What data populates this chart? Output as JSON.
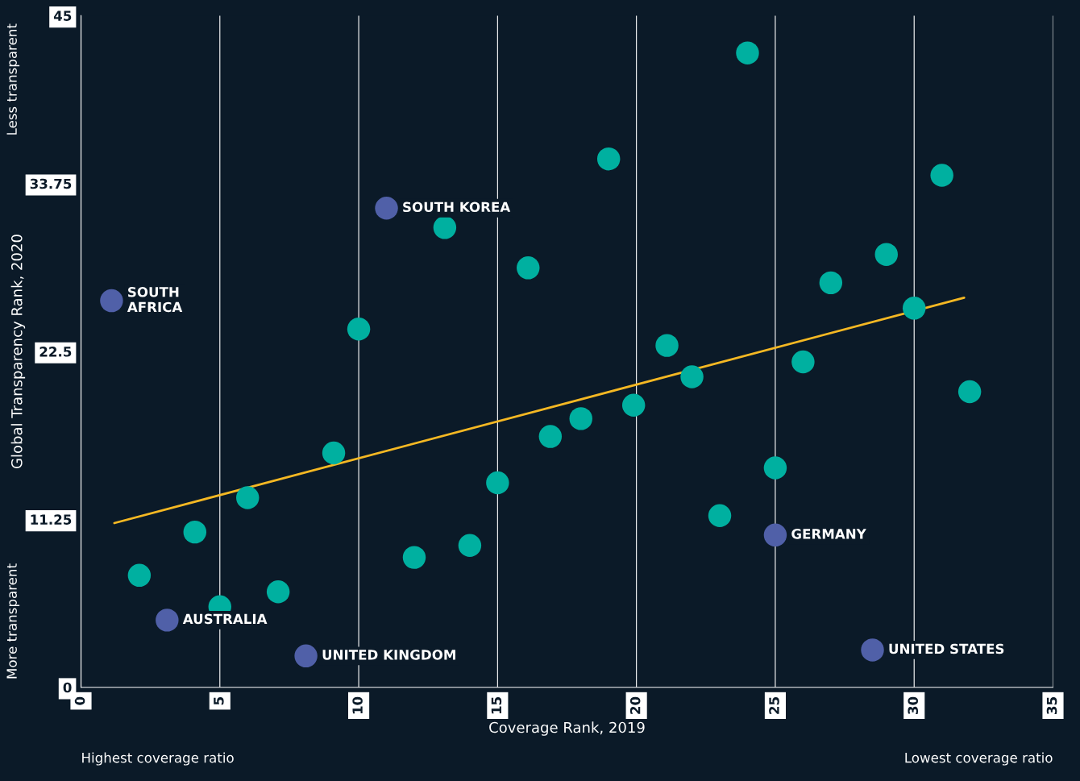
{
  "chart_data": {
    "type": "scatter",
    "xlabel": "Coverage Rank, 2019",
    "ylabel": "Global Transparency Rank, 2020",
    "xlim": [
      0,
      35
    ],
    "xticks": [
      0,
      5,
      10,
      15,
      20,
      25,
      30,
      35
    ],
    "ylim": [
      0,
      45
    ],
    "yticks": [
      0,
      11.25,
      22.5,
      33.75,
      45
    ],
    "grid": "x",
    "marker": "circle",
    "legend": false,
    "series": [
      {
        "color": "#00b0a0",
        "x": [
          2.1,
          4.1,
          5.0,
          6.0,
          7.1,
          9.1,
          10.0,
          12.0,
          13.1,
          14.0,
          15.0,
          16.1,
          16.9,
          18.0,
          19.0,
          19.9,
          21.1,
          22.0,
          23.0,
          24.0,
          25.0,
          26.0,
          27.0,
          29.0,
          30.0,
          31.0,
          32.0
        ],
        "values": [
          7.5,
          10.4,
          5.4,
          12.7,
          6.4,
          15.7,
          24.0,
          8.7,
          30.8,
          9.5,
          13.7,
          28.1,
          16.8,
          18.0,
          35.4,
          18.9,
          22.9,
          20.8,
          11.5,
          42.5,
          14.7,
          21.8,
          27.1,
          29.0,
          25.4,
          34.3,
          19.8
        ]
      },
      {
        "color": "#5060a8",
        "x": [
          1.1,
          3.1,
          8.1,
          11.0,
          25.0,
          28.5
        ],
        "values": [
          25.9,
          4.5,
          2.1,
          32.1,
          10.2,
          2.5
        ]
      },
      {
        "type": "line",
        "color": "#f5b823",
        "marker": "none",
        "line_style": "solid",
        "x": [
          1.2,
          31.8
        ],
        "values": [
          11.0,
          26.1
        ]
      }
    ],
    "annotations": [
      {
        "text": "SOUTH\nAFRICA",
        "x": 1.1,
        "y": 25.9
      },
      {
        "text": "AUSTRALIA",
        "x": 3.1,
        "y": 4.5
      },
      {
        "text": "UNITED KINGDOM",
        "x": 8.1,
        "y": 2.1
      },
      {
        "text": "SOUTH KOREA",
        "x": 11.0,
        "y": 32.1
      },
      {
        "text": "GERMANY",
        "x": 25.0,
        "y": 10.2
      },
      {
        "text": "UNITED STATES",
        "x": 28.5,
        "y": 2.5
      },
      "Less transparent",
      "More transparent",
      "Highest coverage ratio",
      "Lowest coverage ratio"
    ]
  }
}
